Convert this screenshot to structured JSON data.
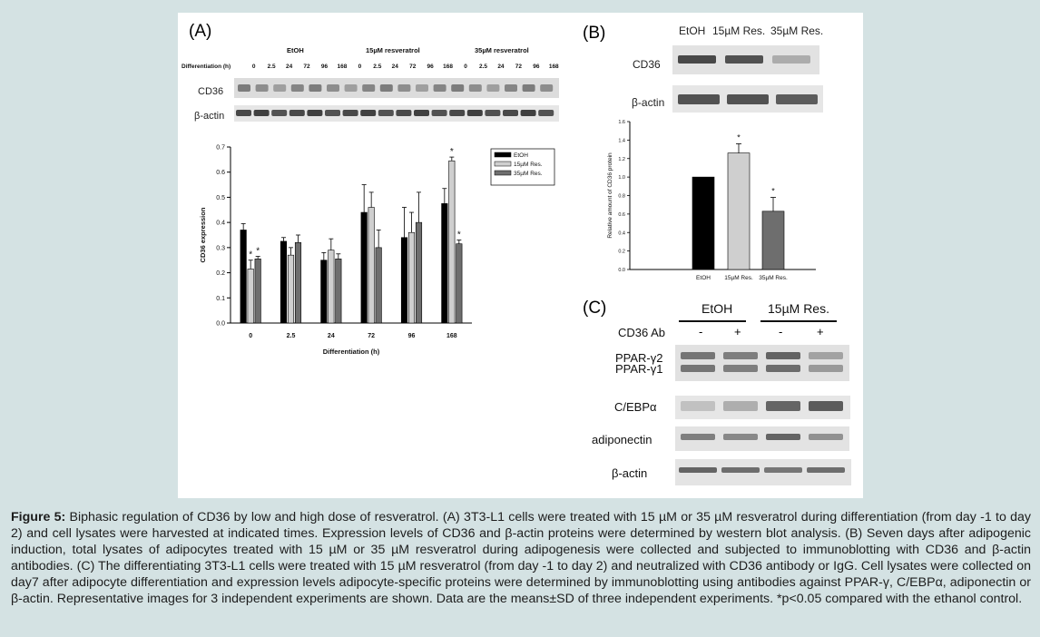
{
  "panelA": {
    "label": "(A)",
    "group_labels": [
      "EtOH",
      "15µM resveratrol",
      "35µM resveratrol"
    ],
    "diff_label": "Differentiation (h)",
    "time_labels": [
      "0",
      "2.5",
      "24",
      "72",
      "96",
      "168",
      "0",
      "2.5",
      "24",
      "72",
      "96",
      "168",
      "0",
      "2.5",
      "24",
      "72",
      "96",
      "168"
    ],
    "blot_rows": [
      "CD36",
      "β-actin"
    ]
  },
  "panelB": {
    "label": "(B)",
    "lanes": [
      "EtOH",
      "15µM Res.",
      "35µM Res."
    ],
    "blot_rows": [
      "CD36",
      "β-actin"
    ]
  },
  "panelC": {
    "label": "(C)",
    "groups": [
      "EtOH",
      "15µM Res."
    ],
    "ab_label": "CD36 Ab",
    "ab_signs": [
      "-",
      "+",
      "-",
      "+"
    ],
    "blot_rows": [
      "PPAR-γ2",
      "PPAR-γ1",
      "C/EBPα",
      "adiponectin",
      "β-actin"
    ]
  },
  "chart_data": [
    {
      "type": "bar",
      "title": "",
      "xlabel": "Differentiation (h)",
      "ylabel": "CD36 expression",
      "ylim": [
        0,
        0.7
      ],
      "yticks": [
        "0.0",
        "0.1",
        "0.2",
        "0.3",
        "0.4",
        "0.5",
        "0.6",
        "0.7"
      ],
      "categories": [
        "0",
        "2.5",
        "24",
        "72",
        "96",
        "168"
      ],
      "legend_position": "top-right",
      "series": [
        {
          "name": "EtOH",
          "color": "#000000",
          "values": [
            0.37,
            0.325,
            0.25,
            0.44,
            0.34,
            0.475
          ],
          "errors": [
            0.025,
            0.015,
            0.03,
            0.11,
            0.12,
            0.06
          ]
        },
        {
          "name": "15µM Res.",
          "color": "#cfcfcf",
          "values": [
            0.215,
            0.27,
            0.29,
            0.46,
            0.36,
            0.645
          ],
          "errors": [
            0.035,
            0.03,
            0.045,
            0.06,
            0.08,
            0.015
          ]
        },
        {
          "name": "35µM Res.",
          "color": "#6e6e6e",
          "values": [
            0.255,
            0.32,
            0.255,
            0.3,
            0.4,
            0.315
          ],
          "errors": [
            0.01,
            0.03,
            0.02,
            0.07,
            0.12,
            0.015
          ]
        }
      ],
      "significance": [
        {
          "category": "0",
          "series": "15µM Res.",
          "mark": "*"
        },
        {
          "category": "0",
          "series": "35µM Res.",
          "mark": "*"
        },
        {
          "category": "168",
          "series": "15µM Res.",
          "mark": "*"
        },
        {
          "category": "168",
          "series": "35µM Res.",
          "mark": "*"
        }
      ]
    },
    {
      "type": "bar",
      "title": "",
      "xlabel": "",
      "ylabel": "Relative amount of CD36 protein",
      "ylim": [
        0,
        1.6
      ],
      "yticks": [
        "0.0",
        "0.2",
        "0.4",
        "0.6",
        "0.8",
        "1.0",
        "1.2",
        "1.4",
        "1.6"
      ],
      "categories": [
        "EtOH",
        "15µM Res.",
        "35µM Res."
      ],
      "values": [
        1.0,
        1.26,
        0.63
      ],
      "errors": [
        0.0,
        0.1,
        0.15
      ],
      "colors": [
        "#000000",
        "#cfcfcf",
        "#6e6e6e"
      ],
      "significance": [
        {
          "category": "15µM Res.",
          "mark": "*"
        },
        {
          "category": "35µM Res.",
          "mark": "*"
        }
      ]
    }
  ],
  "caption": {
    "lead": "Figure 5:",
    "text": " Biphasic regulation of CD36 by low and high dose of resveratrol. (A) 3T3-L1 cells were treated with 15 µM or 35 µM resveratrol during differentiation (from day -1 to day 2) and cell lysates were harvested at indicated times.  Expression levels of CD36 and β-actin proteins were determined by western blot analysis.  (B) Seven days after adipogenic induction, total lysates of adipocytes treated with 15 µM or 35 µM resveratrol during adipogenesis were collected and subjected to immunoblotting with CD36 and β-actin antibodies. (C) The differentiating 3T3-L1 cells were treated with 15 µM resveratrol (from day -1 to day 2) and neutralized with CD36 antibody or IgG. Cell lysates were collected on day7 after adipocyte differentiation and expression levels adipocyte-specific proteins were determined by immunoblotting using antibodies against PPAR-γ, C/EBPα, adiponectin or β-actin. Representative images for 3 independent experiments are shown. Data are the means±SD of three independent experiments. *p<0.05 compared with the ethanol control."
  }
}
